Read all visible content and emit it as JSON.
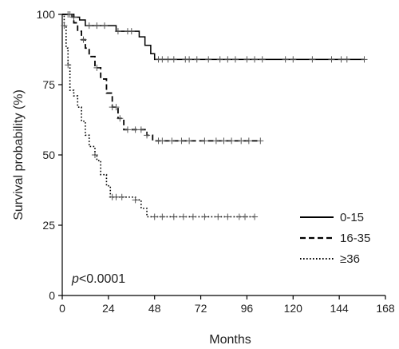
{
  "chart_data": {
    "type": "line",
    "title": "",
    "xlabel": "Months",
    "ylabel": "Survival probability (%)",
    "xlim": [
      0,
      168
    ],
    "ylim": [
      0,
      100
    ],
    "xticks": [
      0,
      24,
      48,
      72,
      96,
      120,
      144,
      168
    ],
    "yticks": [
      0,
      25,
      50,
      75,
      100
    ],
    "legend_position": "right",
    "annotation": {
      "italic": "p",
      "rest": "<0.0001"
    },
    "series": [
      {
        "name": "0-15",
        "style": "solid",
        "color": "#000000",
        "points": [
          [
            0,
            100
          ],
          [
            3,
            100
          ],
          [
            5,
            99
          ],
          [
            9,
            98
          ],
          [
            12,
            96
          ],
          [
            18,
            96
          ],
          [
            22,
            96
          ],
          [
            28,
            94
          ],
          [
            36,
            94
          ],
          [
            40,
            92
          ],
          [
            43,
            89
          ],
          [
            46,
            86
          ],
          [
            48,
            84
          ],
          [
            157,
            84
          ]
        ],
        "censor": [
          3,
          6,
          14,
          18,
          22,
          29,
          34,
          36,
          50,
          52,
          55,
          58,
          64,
          66,
          70,
          76,
          82,
          86,
          90,
          96,
          100,
          104,
          116,
          120,
          130,
          140,
          145,
          148,
          157
        ]
      },
      {
        "name": "16-35",
        "style": "dashed",
        "color": "#000000",
        "points": [
          [
            0,
            100
          ],
          [
            3,
            100
          ],
          [
            6,
            97
          ],
          [
            8,
            94
          ],
          [
            10,
            91
          ],
          [
            12,
            88
          ],
          [
            14,
            85
          ],
          [
            17,
            81
          ],
          [
            20,
            77
          ],
          [
            23,
            72
          ],
          [
            26,
            67
          ],
          [
            29,
            63
          ],
          [
            32,
            59
          ],
          [
            40,
            59
          ],
          [
            44,
            57
          ],
          [
            47,
            55
          ],
          [
            103,
            55
          ]
        ],
        "censor": [
          4,
          11,
          18,
          26,
          28,
          30,
          34,
          38,
          41,
          44,
          50,
          52,
          57,
          62,
          66,
          74,
          80,
          84,
          88,
          93,
          97,
          103
        ]
      },
      {
        "name": "≥36",
        "style": "dotted",
        "color": "#000000",
        "points": [
          [
            0,
            100
          ],
          [
            1,
            96
          ],
          [
            2,
            88
          ],
          [
            3,
            82
          ],
          [
            4,
            73
          ],
          [
            6,
            71
          ],
          [
            8,
            67
          ],
          [
            10,
            62
          ],
          [
            12,
            57
          ],
          [
            14,
            53
          ],
          [
            16,
            53
          ],
          [
            17,
            50
          ],
          [
            18,
            48
          ],
          [
            20,
            43
          ],
          [
            23,
            39
          ],
          [
            25,
            35
          ],
          [
            27,
            35
          ],
          [
            36,
            35
          ],
          [
            38,
            34
          ],
          [
            41,
            31
          ],
          [
            44,
            28
          ],
          [
            100,
            28
          ]
        ],
        "censor": [
          1,
          3,
          17,
          26,
          28,
          31,
          38,
          48,
          52,
          58,
          63,
          68,
          74,
          81,
          86,
          92,
          95,
          100
        ]
      }
    ]
  }
}
